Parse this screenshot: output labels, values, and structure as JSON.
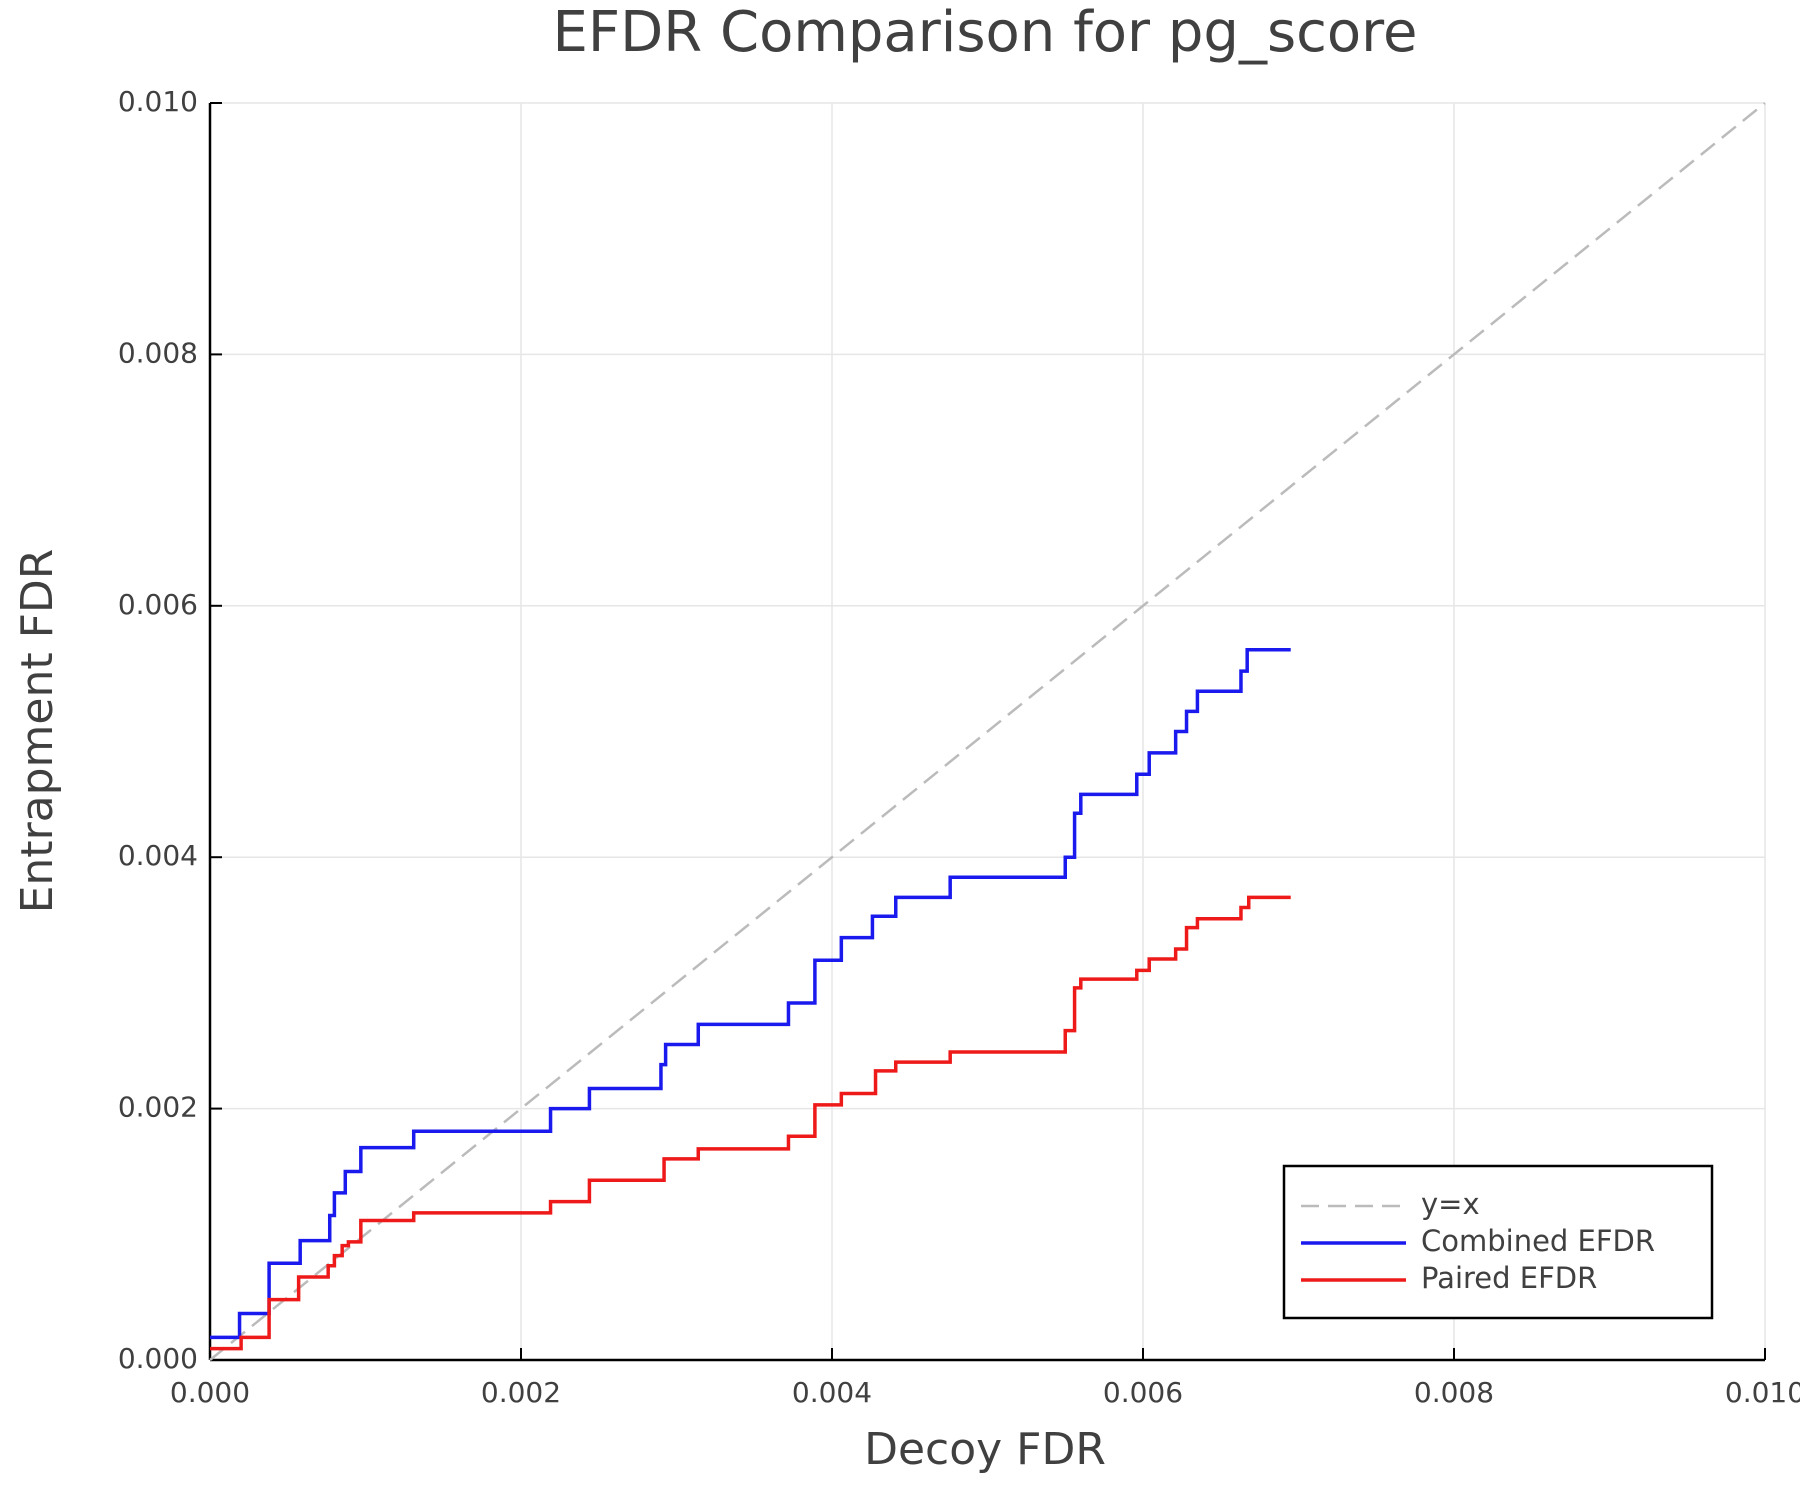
{
  "chart_data": {
    "type": "line",
    "step": "post",
    "title": "EFDR Comparison for pg_score",
    "x_label": "Decoy FDR",
    "y_label": "Entrapment FDR",
    "xlim": [
      0,
      0.01
    ],
    "ylim": [
      0,
      0.01
    ],
    "xticks": [
      {
        "value": 0,
        "label": "0.000"
      },
      {
        "value": 0.002,
        "label": "0.002"
      },
      {
        "value": 0.004,
        "label": "0.004"
      },
      {
        "value": 0.006,
        "label": "0.006"
      },
      {
        "value": 0.008,
        "label": "0.008"
      },
      {
        "value": 0.01,
        "label": "0.010"
      }
    ],
    "yticks": [
      {
        "value": 0,
        "label": "0.000"
      },
      {
        "value": 0.002,
        "label": "0.002"
      },
      {
        "value": 0.004,
        "label": "0.004"
      },
      {
        "value": 0.006,
        "label": "0.006"
      },
      {
        "value": 0.008,
        "label": "0.008"
      },
      {
        "value": 0.01,
        "label": "0.010"
      }
    ],
    "grid": true,
    "legend": "lower right",
    "series": [
      {
        "name": "y=x",
        "color": "#bbbbbb",
        "dashed": true,
        "step": false,
        "x": [
          0,
          0.01
        ],
        "values": [
          0,
          0.01
        ]
      },
      {
        "name": "Combined EFDR",
        "color": "#1a1aee",
        "dashed": false,
        "step": true,
        "x": [
          0,
          0.00019,
          0.00038,
          0.00058,
          0.00077,
          0.0008,
          0.00087,
          0.00097,
          0.00131,
          0.00219,
          0.00244,
          0.0029,
          0.00293,
          0.00314,
          0.00372,
          0.00389,
          0.00406,
          0.00426,
          0.00441,
          0.00476,
          0.0055,
          0.00556,
          0.0056,
          0.00596,
          0.00604,
          0.00621,
          0.00628,
          0.00635,
          0.00663,
          0.00667,
          0.00695
        ],
        "values": [
          0.00018,
          0.00037,
          0.00077,
          0.00095,
          0.00115,
          0.00133,
          0.0015,
          0.00169,
          0.00182,
          0.002,
          0.00216,
          0.00235,
          0.00251,
          0.00267,
          0.00284,
          0.00318,
          0.00336,
          0.00353,
          0.00368,
          0.00384,
          0.004,
          0.00435,
          0.0045,
          0.00466,
          0.00483,
          0.005,
          0.00516,
          0.00532,
          0.00548,
          0.00565,
          0.00565
        ]
      },
      {
        "name": "Paired EFDR",
        "color": "#ee1a1a",
        "dashed": false,
        "step": true,
        "x": [
          0,
          0.0002,
          0.00038,
          0.00057,
          0.00076,
          0.0008,
          0.00085,
          0.00089,
          0.00097,
          0.00131,
          0.00219,
          0.00244,
          0.00292,
          0.00314,
          0.00372,
          0.00389,
          0.00406,
          0.00428,
          0.00441,
          0.00476,
          0.0055,
          0.00556,
          0.0056,
          0.00596,
          0.00604,
          0.00621,
          0.00628,
          0.00635,
          0.00663,
          0.00668,
          0.00695
        ],
        "values": [
          9e-05,
          0.00018,
          0.00048,
          0.00066,
          0.00075,
          0.00083,
          0.00091,
          0.00094,
          0.00111,
          0.00117,
          0.00126,
          0.00143,
          0.0016,
          0.00168,
          0.00178,
          0.00203,
          0.00212,
          0.0023,
          0.00237,
          0.00245,
          0.00262,
          0.00296,
          0.00303,
          0.0031,
          0.00319,
          0.00327,
          0.00344,
          0.00351,
          0.0036,
          0.00368,
          0.00368
        ]
      }
    ]
  }
}
